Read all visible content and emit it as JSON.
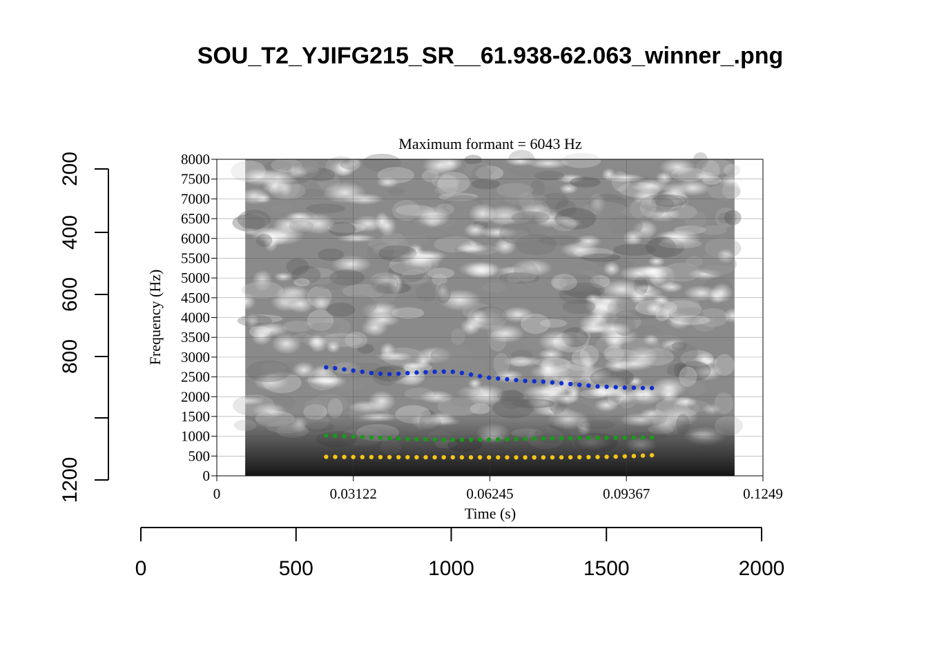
{
  "window_title": "SOU_T2_YJIFG215_SR__61.938-62.063_winner_.png",
  "outer_axes": {
    "bottom_ticks": [
      "0",
      "500",
      "1000",
      "1500",
      "2000"
    ],
    "left_ticks": [
      "200",
      "400",
      "600",
      "800",
      "1200"
    ]
  },
  "chart_data": {
    "type": "scatter",
    "title": "Maximum formant  =  6043 Hz",
    "xlabel": "Time (s)",
    "ylabel": "Frequency (Hz)",
    "xlim": [
      0,
      0.1249
    ],
    "ylim": [
      0,
      8000
    ],
    "x_ticks": [
      "0",
      "0.03122",
      "0.06245",
      "0.09367",
      "0.1249"
    ],
    "y_ticks": [
      "0",
      "500",
      "1000",
      "1500",
      "2000",
      "2500",
      "3000",
      "3500",
      "4000",
      "4500",
      "5000",
      "5500",
      "6000",
      "6500",
      "7000",
      "7500",
      "8000"
    ],
    "grid": true,
    "spectrogram_x_range": [
      0.0065,
      0.1184
    ],
    "colors": {
      "F1": "#f5c518",
      "F2": "#1a9a1a",
      "F3": "#1030d0"
    },
    "series": [
      {
        "key": "F1",
        "x_start": 0.025,
        "x_end": 0.0995,
        "values": [
          480,
          478,
          476,
          475,
          474,
          473,
          472,
          471,
          470,
          470,
          469,
          469,
          468,
          468,
          468,
          467,
          467,
          467,
          466,
          466,
          466,
          466,
          465,
          465,
          465,
          466,
          467,
          468,
          470,
          472,
          475,
          480,
          485,
          492,
          500,
          510,
          520
        ]
      },
      {
        "key": "F2",
        "x_start": 0.025,
        "x_end": 0.0995,
        "values": [
          1020,
          1010,
          1000,
          990,
          980,
          970,
          960,
          950,
          940,
          930,
          925,
          920,
          915,
          910,
          910,
          910,
          912,
          915,
          918,
          920,
          925,
          930,
          935,
          940,
          945,
          948,
          950,
          952,
          955,
          958,
          960,
          962,
          963,
          964,
          965,
          966,
          967
        ]
      },
      {
        "key": "F3",
        "x_start": 0.025,
        "x_end": 0.0995,
        "values": [
          2740,
          2720,
          2690,
          2660,
          2630,
          2600,
          2580,
          2570,
          2580,
          2595,
          2610,
          2620,
          2630,
          2635,
          2630,
          2600,
          2560,
          2520,
          2480,
          2460,
          2440,
          2420,
          2400,
          2390,
          2380,
          2360,
          2340,
          2320,
          2300,
          2280,
          2260,
          2250,
          2240,
          2230,
          2225,
          2220,
          2218
        ]
      }
    ]
  }
}
